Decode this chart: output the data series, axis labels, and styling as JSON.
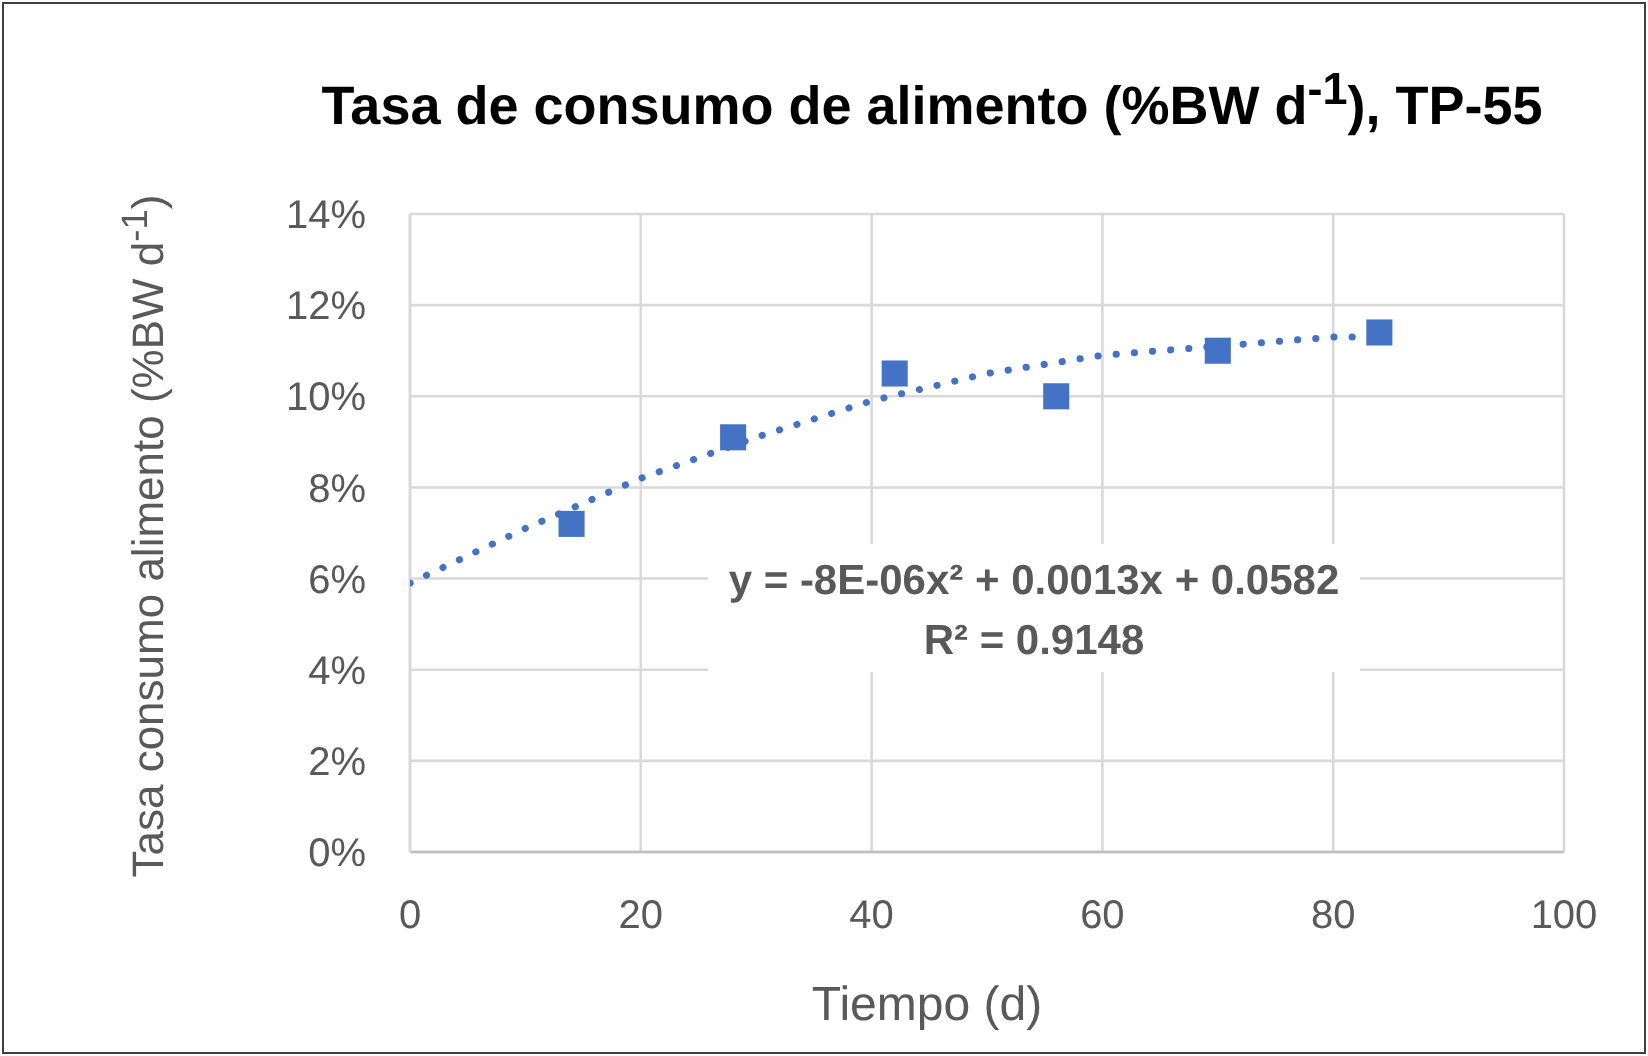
{
  "chart_data": {
    "type": "scatter",
    "title": "Tasa de consumo de alimento (%BW d$^{-1}$), TP-55",
    "xlabel": "Tiempo (d)",
    "ylabel": "Tasa consumo alimento (%BW d$^{-1}$)",
    "annotations": [
      "y = -8E-06x² + 0.0013x + 0.0582",
      "R² = 0.9148"
    ],
    "series": [
      {
        "type": "scatter",
        "color": "#4472c4",
        "marker": "square",
        "x": [
          14,
          28,
          42,
          56,
          70,
          84
        ],
        "values": [
          0.072,
          0.091,
          0.105,
          0.1,
          0.11,
          0.114
        ]
      },
      {
        "type": "line",
        "color": "#4472c4",
        "marker": "none",
        "line_style": "dotted",
        "x": [
          0,
          10,
          20,
          30,
          40,
          50,
          60,
          70,
          80,
          84
        ],
        "values": [
          0.059,
          0.071,
          0.082,
          0.091,
          0.099,
          0.105,
          0.109,
          0.111,
          0.113,
          0.113
        ]
      }
    ],
    "xlim": [
      0,
      100
    ],
    "xticks": [
      0,
      20,
      40,
      60,
      80,
      100
    ],
    "ylim": [
      0,
      0.14
    ],
    "yticks": [
      {
        "value": 0,
        "label": "0%"
      },
      {
        "value": 0.02,
        "label": "2%"
      },
      {
        "value": 0.04,
        "label": "4%"
      },
      {
        "value": 0.06,
        "label": "6%"
      },
      {
        "value": 0.08,
        "label": "8%"
      },
      {
        "value": 0.1,
        "label": "10%"
      },
      {
        "value": 0.12,
        "label": "12%"
      },
      {
        "value": 0.14,
        "label": "14%"
      }
    ],
    "grid": true
  }
}
